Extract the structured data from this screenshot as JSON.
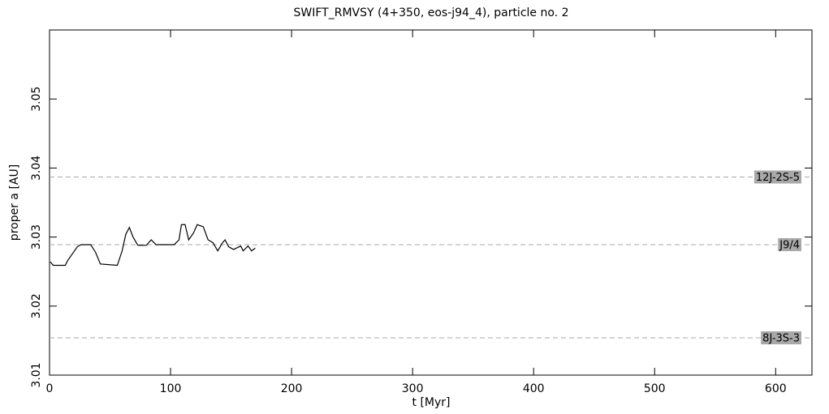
{
  "chart_data": {
    "type": "line",
    "title": "SWIFT_RMVSY (4+350, eos-j94_4), particle no. 2",
    "x_label": "t [Myr]",
    "y_label": "proper a [AU]",
    "x": [
      0.7,
      3,
      13,
      15,
      23,
      26,
      34,
      38,
      42,
      56,
      60,
      63,
      66,
      69,
      73,
      80,
      84,
      88,
      103,
      107,
      109,
      112,
      115,
      119,
      122,
      127,
      131,
      135,
      139,
      143,
      145,
      148,
      152,
      158,
      160,
      164,
      167,
      170
    ],
    "series": [
      {
        "color": "#000000",
        "values": [
          3.0264,
          3.0259,
          3.0259,
          3.0266,
          3.0286,
          3.0289,
          3.0289,
          3.0278,
          3.0261,
          3.0259,
          3.028,
          3.0304,
          3.0314,
          3.03,
          3.0288,
          3.0288,
          3.0296,
          3.0289,
          3.0289,
          3.0296,
          3.0318,
          3.0318,
          3.0296,
          3.0306,
          3.0318,
          3.0315,
          3.0296,
          3.0292,
          3.028,
          3.0292,
          3.0296,
          3.0286,
          3.0282,
          3.0287,
          3.028,
          3.0287,
          3.028,
          3.0284
        ]
      }
    ],
    "xlim": [
      0,
      630
    ],
    "ylim": [
      3.01,
      3.06
    ],
    "xticks": [
      0,
      100,
      200,
      300,
      400,
      500,
      600
    ],
    "yticks": [
      3.01,
      3.02,
      3.03,
      3.04,
      3.05
    ],
    "reference_lines": [
      {
        "value": 3.0387,
        "label": "12J-2S-5"
      },
      {
        "value": 3.0289,
        "label": "J9/4"
      },
      {
        "value": 3.0154,
        "label": "8J-3S-3"
      }
    ],
    "reference_color": "#a8a8a8"
  }
}
